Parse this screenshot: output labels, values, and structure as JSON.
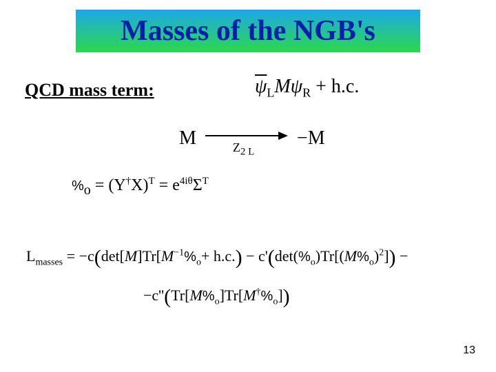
{
  "title": "Masses of the NGB's",
  "subtitle": "QCD mass term:",
  "eq1_html": "<span class=\"bar ital\">ψ</span><sub>L</sub><span class=\"ital\">M</span><span class=\"ital\">ψ</span><sub>R</sub> + h.c.",
  "eq2_left": "M",
  "eq2_arrow_sub": "Z<sub>2 L</sub>",
  "eq2_right": "−M",
  "eq3_html": "<span class=\"pct\">%</span><sub>o</sub> = (Y<sup>†</sup>X)<sup>T</sup> = e<sup>4iθ</sup>Σ<sup>T</sup>",
  "eq4_line1": "L<sub>masses</sub> = −c<span class=\"big\">(</span>det[<span class=\"ital\">M</span>]Tr[<span class=\"ital\">M</span><sup>−1</sup><span class=\"pct\">%</span><sub>o</sub>+ h.c.<span class=\"big\">)</span> − c'<span class=\"big\">(</span>det(<span class=\"pct\">%</span><sub>o</sub>)Tr[(<span class=\"ital\">M</span><span class=\"pct\">%</span><sub>o</sub>)<sup>2</sup>]<span class=\"big\">)</span> −",
  "eq4_line2": "−c''<span class=\"big\">(</span>Tr[<span class=\"ital\">M</span><span class=\"pct\">%</span><sub>o</sub>]Tr[<span class=\"ital\">M</span><sup>†</sup><span class=\"pct\">%</span><sub>o</sub>]<span class=\"big\">)</span>",
  "page_number": "13",
  "style": {
    "title_gradient_top": "#1da8e8",
    "title_gradient_bottom": "#2bd94a",
    "title_text_color": "#001faa",
    "title_font": "Comic Sans MS",
    "title_fontsize": 42,
    "subtitle_fontsize": 26,
    "equation_font": "Times New Roman",
    "background": "#ffffff"
  }
}
